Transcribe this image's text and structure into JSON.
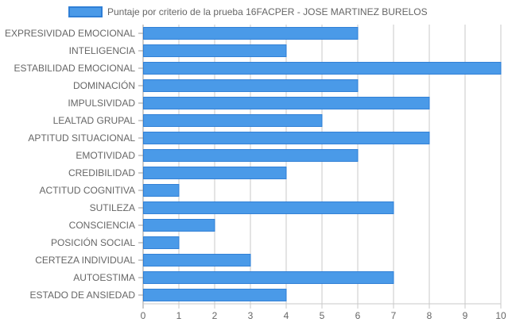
{
  "chart_data": {
    "type": "bar",
    "orientation": "horizontal",
    "categories": [
      "EXPRESIVIDAD EMOCIONAL",
      "INTELIGENCIA",
      "ESTABILIDAD EMOCIONAL",
      "DOMINACIÓN",
      "IMPULSIVIDAD",
      "LEALTAD GRUPAL",
      "APTITUD SITUACIONAL",
      "EMOTIVIDAD",
      "CREDIBILIDAD",
      "ACTITUD COGNITIVA",
      "SUTILEZA",
      "CONSCIENCIA",
      "POSICIÓN SOCIAL",
      "CERTEZA INDIVIDUAL",
      "AUTOESTIMA",
      "ESTADO DE ANSIEDAD"
    ],
    "series": [
      {
        "name": "Puntaje por criterio de la prueba 16FACPER - JOSE MARTINEZ BURELOS",
        "values": [
          6,
          4,
          10,
          6,
          8,
          5,
          8,
          6,
          4,
          1,
          7,
          2,
          1,
          3,
          7,
          4
        ],
        "color": "#4a9ae8",
        "border_color": "#2f7fd6"
      }
    ],
    "xlim": [
      0,
      10
    ],
    "x_ticks": [
      "0",
      "1",
      "2",
      "3",
      "4",
      "5",
      "6",
      "7",
      "8",
      "9",
      "10"
    ],
    "grid": true,
    "legend_position": "top"
  }
}
